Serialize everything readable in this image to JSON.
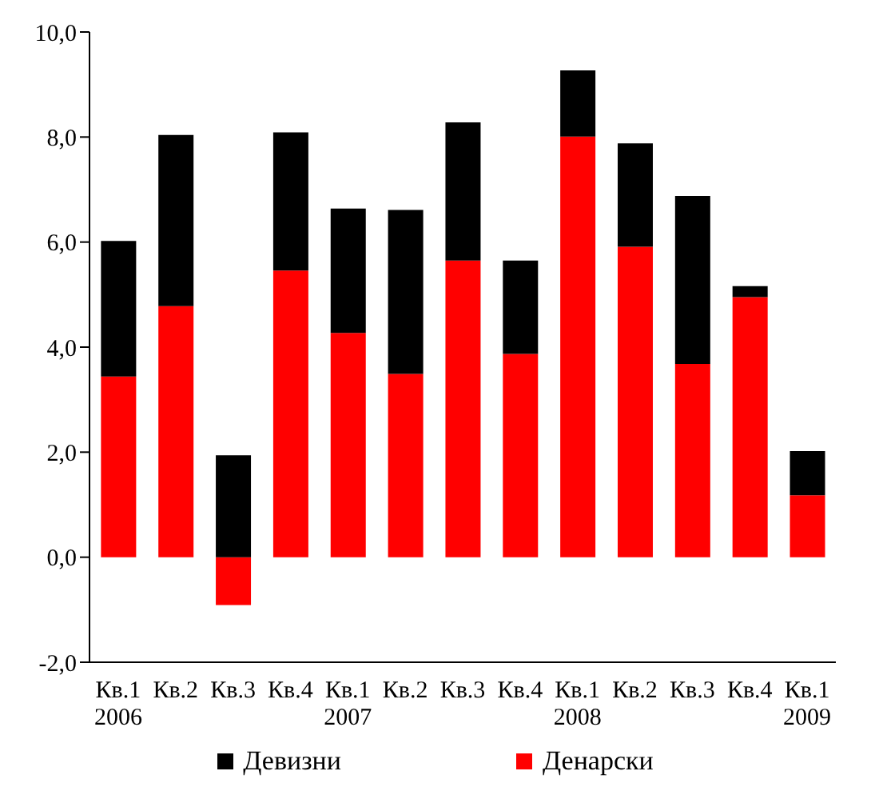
{
  "chart_data": {
    "type": "bar",
    "stacked": true,
    "categories": [
      "Кв.1\n2006",
      "Кв.2",
      "Кв.3",
      "Кв.4",
      "Кв.1\n2007",
      "Кв.2",
      "Кв.3",
      "Кв.4",
      "Кв.1\n2008",
      "Кв.2",
      "Кв.3",
      "Кв.4",
      "Кв.1\n2009"
    ],
    "series": [
      {
        "name": "Денарски",
        "color": "#ff0000",
        "values": [
          3.44,
          4.78,
          -0.91,
          5.46,
          4.27,
          3.49,
          5.65,
          3.87,
          8.01,
          5.91,
          3.68,
          4.95,
          1.18
        ]
      },
      {
        "name": "Девизни",
        "color": "#000000",
        "values": [
          2.58,
          3.26,
          1.94,
          2.63,
          2.37,
          3.12,
          2.63,
          1.78,
          1.26,
          1.97,
          3.2,
          0.21,
          0.84
        ]
      }
    ],
    "ylim": [
      -2,
      10
    ],
    "yticks": [
      {
        "value": -2,
        "label": "-2,0"
      },
      {
        "value": 0,
        "label": "0,0"
      },
      {
        "value": 2,
        "label": "2,0"
      },
      {
        "value": 4,
        "label": "4,0"
      },
      {
        "value": 6,
        "label": "6,0"
      },
      {
        "value": 8,
        "label": "8,0"
      },
      {
        "value": 10,
        "label": "10,0"
      }
    ],
    "grid": false,
    "legend": "bottom"
  }
}
